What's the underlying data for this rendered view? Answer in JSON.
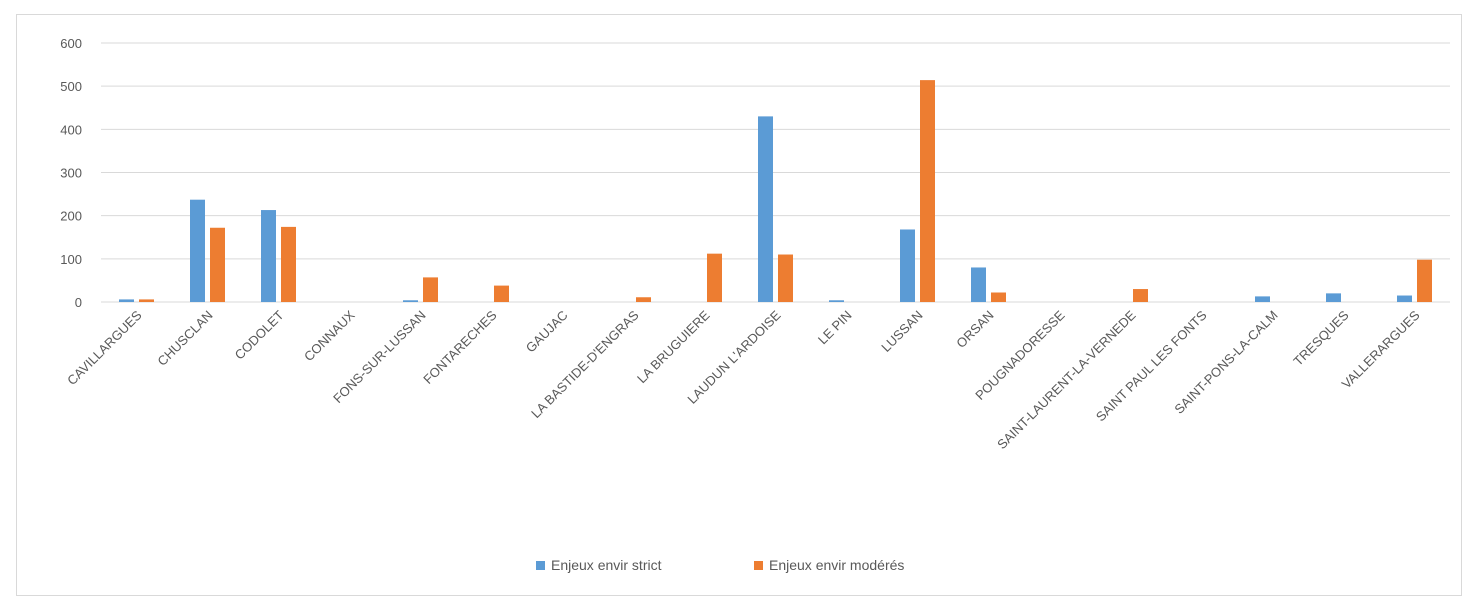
{
  "chart_data": {
    "type": "bar",
    "title": "",
    "xlabel": "",
    "ylabel": "",
    "ylim": [
      0,
      600
    ],
    "yticks": [
      0,
      100,
      200,
      300,
      400,
      500,
      600
    ],
    "grid": true,
    "legend_position": "bottom",
    "categories": [
      "CAVILLARGUES",
      "CHUSCLAN",
      "CODOLET",
      "CONNAUX",
      "FONS-SUR-LUSSAN",
      "FONTARECHES",
      "GAUJAC",
      "LA BASTIDE-D'ENGRAS",
      "LA BRUGUIERE",
      "LAUDUN L'ARDOISE",
      "LE PIN",
      "LUSSAN",
      "ORSAN",
      "POUGNADORESSE",
      "SAINT-LAURENT-LA-VERNEDE",
      "SAINT PAUL LES FONTS",
      "SAINT-PONS-LA-CALM",
      "TRESQUES",
      "VALLERARGUES"
    ],
    "series": [
      {
        "name": "Enjeux envir strict",
        "color": "#5b9bd5",
        "values": [
          6,
          237,
          213,
          0,
          4,
          0,
          0,
          0,
          0,
          430,
          4,
          168,
          80,
          0,
          0,
          0,
          13,
          20,
          15
        ]
      },
      {
        "name": "Enjeux envir modérés",
        "color": "#ed7d31",
        "values": [
          6,
          172,
          174,
          0,
          57,
          38,
          0,
          11,
          112,
          110,
          0,
          514,
          22,
          0,
          30,
          0,
          0,
          0,
          98
        ]
      }
    ]
  }
}
